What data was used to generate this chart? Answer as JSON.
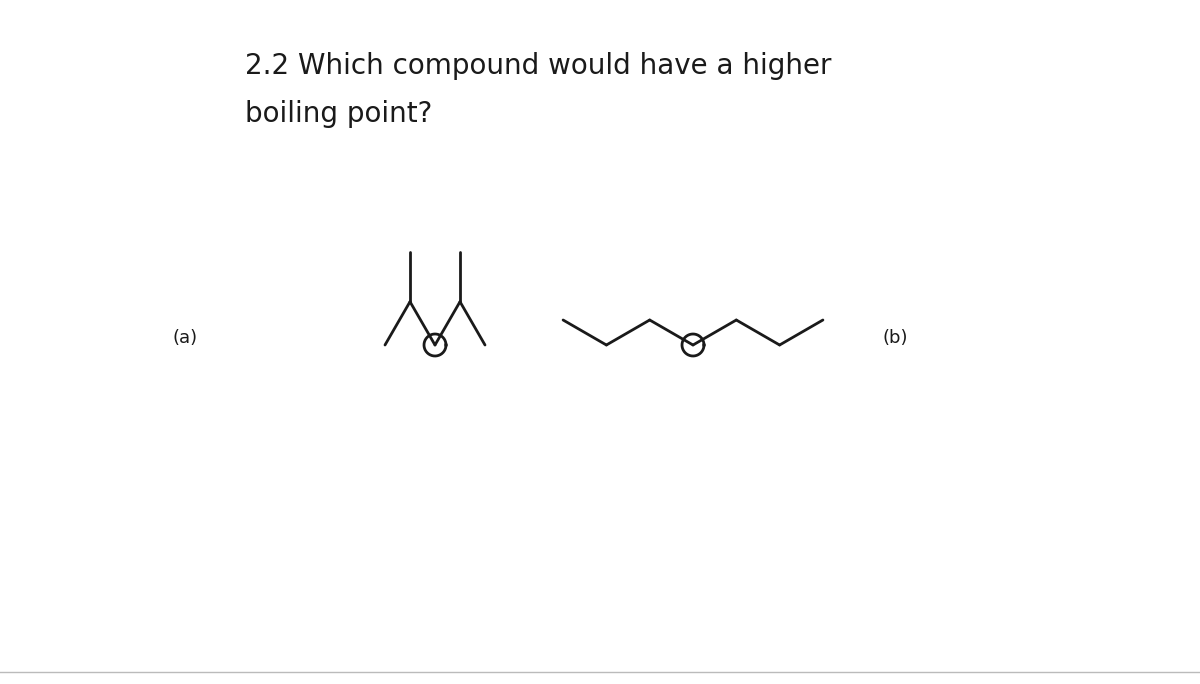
{
  "title_line1": "2.2 Which compound would have a higher",
  "title_line2": "boiling point?",
  "title_fontsize": 20,
  "label_a": "(a)",
  "label_b": "(b)",
  "label_fontsize": 13,
  "bg_color": "#ffffff",
  "line_color": "#1a1a1a",
  "line_width": 2.0,
  "bottom_line_color": "#bbbbbb"
}
